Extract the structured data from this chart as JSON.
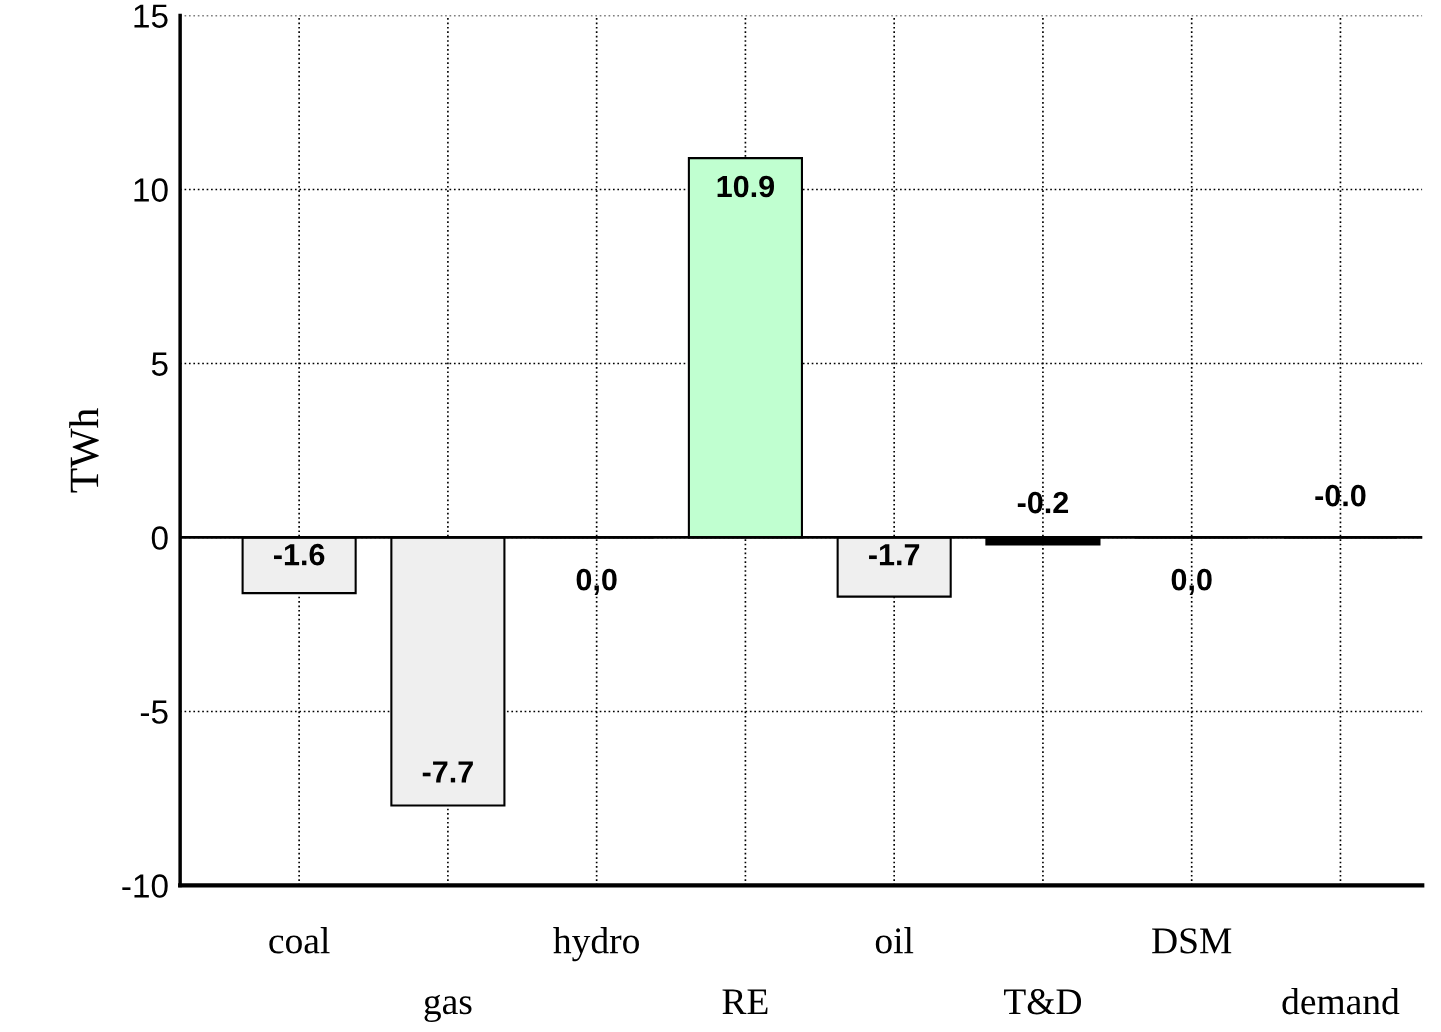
{
  "chart_data": {
    "type": "bar",
    "ylabel": "TWh",
    "categories": [
      "coal",
      "gas",
      "hydro",
      "RE",
      "oil",
      "T&D",
      "DSM",
      "demand"
    ],
    "values": [
      -1.6,
      -7.7,
      0.0,
      10.9,
      -1.7,
      -0.2,
      0.0,
      -0.0
    ],
    "value_labels": [
      "-1.6",
      "-7.7",
      "0,0",
      "10.9",
      "-1.7",
      "-0.2",
      "0,0",
      "-0.0"
    ],
    "colors": [
      "#efefef",
      "#efefef",
      "#000000",
      "#c0ffd0",
      "#efefef",
      "#000000",
      "#000000",
      "#000000"
    ],
    "ylim": [
      -10,
      15
    ],
    "yticks": [
      -10,
      -5,
      0,
      5,
      10,
      15
    ],
    "grid": true,
    "line_style": "dotted",
    "ref_lines": [
      {
        "axis": "y",
        "value": 0,
        "color": "#000000"
      }
    ]
  }
}
